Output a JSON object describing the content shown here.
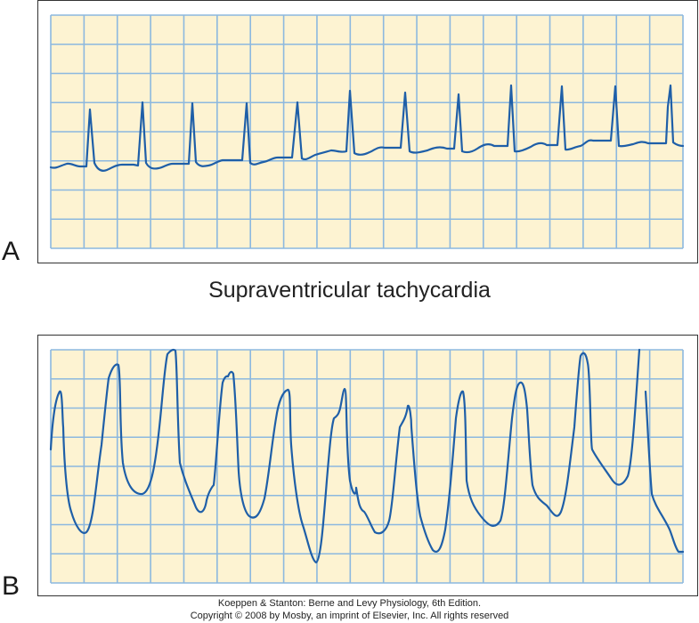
{
  "panel_a": {
    "label": "A"
  },
  "panel_b": {
    "label": "B"
  },
  "caption": "Supraventricular tachycardia",
  "credit": {
    "line1": "Koeppen & Stanton: Berne and Levy Physiology, 6th Edition.",
    "line2": "Copyright © 2008 by Mosby, an imprint of Elsevier, Inc. All rights reserved"
  },
  "colors": {
    "paper": "#fdf3d2",
    "grid": "#8cb8df",
    "trace": "#1f5fa8",
    "frame": "#333333"
  }
}
